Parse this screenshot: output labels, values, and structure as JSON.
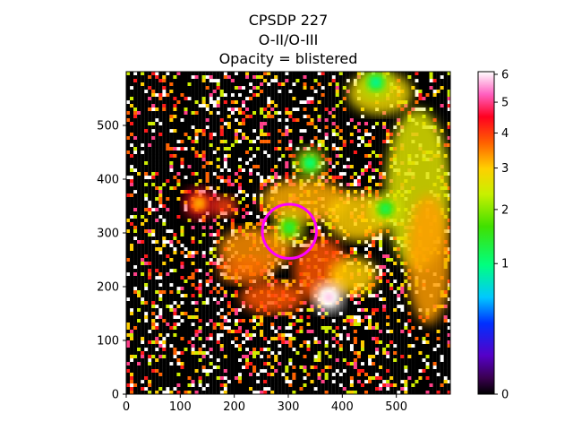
{
  "chart_data": {
    "type": "heatmap",
    "title_lines": [
      "CPSDP 227",
      "O-II/O-III",
      "Opacity = blistered"
    ],
    "xlim": [
      0,
      600
    ],
    "ylim": [
      0,
      600
    ],
    "x_ticks": [
      "0",
      "100",
      "200",
      "300",
      "400",
      "500"
    ],
    "x_tick_values": [
      0,
      100,
      200,
      300,
      400,
      500
    ],
    "y_ticks": [
      "0",
      "100",
      "200",
      "300",
      "400",
      "500"
    ],
    "y_tick_values": [
      0,
      100,
      200,
      300,
      400,
      500
    ],
    "colorbar": {
      "colormap": "gist_ncar-like (black-purple-blue-cyan-green-yellow-orange-red-white)",
      "scale": "power/sqrt-like",
      "range": [
        0,
        6.1
      ],
      "ticks": [
        "0",
        "1",
        "2",
        "3",
        "4",
        "5",
        "6"
      ],
      "tick_values": [
        0,
        1,
        2,
        3,
        4,
        5,
        6
      ]
    },
    "marker_circle": {
      "center": [
        302,
        303
      ],
      "radius": 50,
      "color": "#ff00ff"
    },
    "bright_sources": [
      {
        "x": 302,
        "y": 310,
        "value": 1.3
      },
      {
        "x": 480,
        "y": 345,
        "value": 1.2
      },
      {
        "x": 462,
        "y": 580,
        "value": 0.9
      },
      {
        "x": 340,
        "y": 430,
        "value": 1.0
      },
      {
        "x": 135,
        "y": 355,
        "value": 3.2
      },
      {
        "x": 375,
        "y": 180,
        "value": 5.8
      }
    ]
  }
}
